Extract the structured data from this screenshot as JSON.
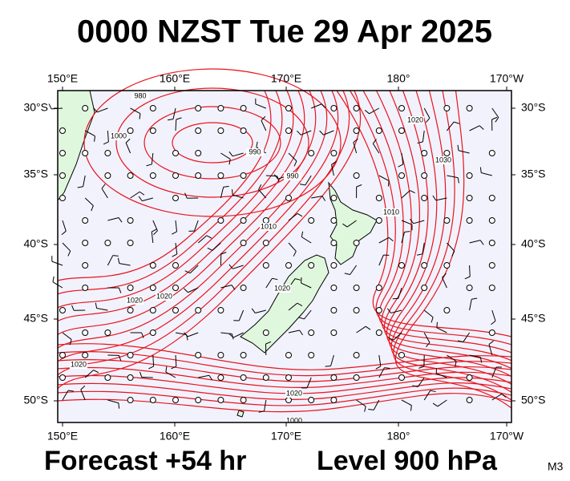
{
  "title": "0000 NZST Tue 29 Apr 2025",
  "map": {
    "lon_labels": [
      "150°E",
      "160°E",
      "170°E",
      "180°",
      "170°W"
    ],
    "lat_labels": [
      "30°S",
      "35°S",
      "40°S",
      "45°S",
      "50°S"
    ],
    "contour_labels": [
      "980",
      "1000",
      "990",
      "990",
      "1010",
      "1020",
      "1030",
      "1010",
      "1020",
      "1020",
      "1020",
      "1020",
      "1020",
      "1000"
    ]
  },
  "footer": {
    "forecast": "Forecast +54 hr",
    "level": "Level 900 hPa",
    "code": "M3"
  }
}
